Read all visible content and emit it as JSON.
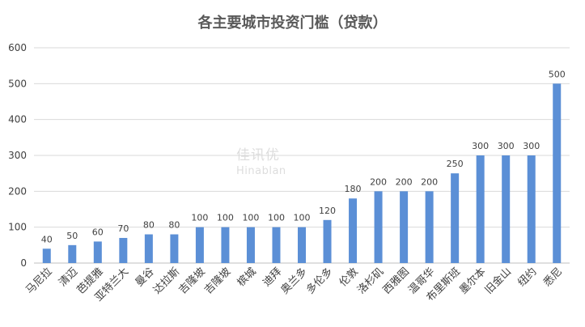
{
  "chart_data": {
    "type": "bar",
    "title": "各主要城市投资门槛（贷款）",
    "xlabel": "",
    "ylabel": "",
    "ylim": [
      0,
      600
    ],
    "yticks": [
      0,
      100,
      200,
      300,
      400,
      500,
      600
    ],
    "grid": true,
    "legend": "none",
    "colors": {
      "bar": "#5b8fd6",
      "grid": "#d9d9d9",
      "text": "#404040",
      "title": "#595959"
    },
    "categories": [
      "马尼拉",
      "清迈",
      "芭提雅",
      "亚特兰大",
      "曼谷",
      "达拉斯",
      "吉隆坡",
      "吉隆坡",
      "槟城",
      "迪拜",
      "奥兰多",
      "多伦多",
      "伦敦",
      "洛杉矶",
      "西雅图",
      "温哥华",
      "布里斯班",
      "墨尔本",
      "旧金山",
      "纽约",
      "悉尼"
    ],
    "values": [
      40,
      50,
      60,
      70,
      80,
      80,
      100,
      100,
      100,
      100,
      100,
      120,
      180,
      200,
      200,
      200,
      250,
      300,
      300,
      300,
      500
    ]
  },
  "watermark": {
    "line1": "佳讯优",
    "line2": "Hinablan"
  }
}
